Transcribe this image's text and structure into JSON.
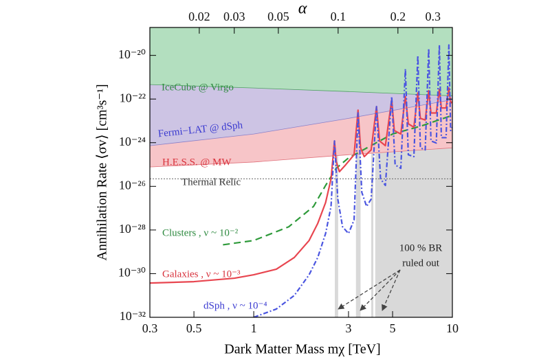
{
  "chart_data": {
    "type": "line",
    "xlabel": "Dark Matter Mass mχ [TeV]",
    "ylabel": "Annihilation Rate ⟨σv⟩ [cm³s⁻¹]",
    "x2label": "α",
    "log_x": true,
    "log_y": true,
    "xlim": [
      0.3,
      10
    ],
    "xticks": [
      0.3,
      0.5,
      1,
      3,
      5,
      10
    ],
    "x2lim": [
      0.01128,
      0.3759
    ],
    "x2ticks": [
      0.02,
      0.03,
      0.05,
      0.1,
      0.2,
      0.3
    ],
    "ylim": [
      1e-32,
      1.9e-19
    ],
    "yticks": [
      {
        "value": 1e-20,
        "label": "10⁻²⁰"
      },
      {
        "value": 1e-22,
        "label": "10⁻²²"
      },
      {
        "value": 1e-24,
        "label": "10⁻²⁴"
      },
      {
        "value": 1e-26,
        "label": "10⁻²⁶"
      },
      {
        "value": 1e-28,
        "label": "10⁻²⁸"
      },
      {
        "value": 1e-30,
        "label": "10⁻³⁰"
      },
      {
        "value": 1e-32,
        "label": "10⁻³²"
      }
    ],
    "regions": [
      {
        "name": "H.E.S.S. @ MW",
        "color": "#f7c5c8",
        "edge": "#e0707a",
        "x": [
          0.3,
          1,
          3,
          10
        ],
        "values": [
          7.7e-26,
          1.3e-25,
          2.8e-25,
          5.8e-25
        ]
      },
      {
        "name": "Fermi−LAT @ dSph",
        "color": "#cdc4e4",
        "edge": "#8a7fc8",
        "x": [
          0.3,
          1,
          3,
          10
        ],
        "values": [
          7.3e-25,
          2.5e-24,
          1.3e-23,
          9.3e-23
        ]
      },
      {
        "name": "IceCube @ Virgo",
        "color": "#b3dfbf",
        "edge": "#4f9e63",
        "x": [
          0.3,
          1,
          3,
          10
        ],
        "values": [
          4.6e-22,
          3.2e-22,
          2.2e-22,
          1.4e-22
        ]
      }
    ],
    "excluded_regions": [
      [
        2.56,
        2.66
      ],
      [
        3.27,
        3.45
      ],
      [
        3.9,
        4.0
      ],
      [
        4.09,
        10
      ]
    ],
    "excluded_label": [
      "100 % BR",
      "ruled out"
    ],
    "thermal_relic": {
      "label": "Thermal Relic",
      "value": 2.2e-26
    },
    "series": [
      {
        "name": "Clusters , ν ~ 10⁻²",
        "color": "#2e9a3a",
        "style": "dashed",
        "x": [
          0.7,
          1,
          1.5,
          2,
          2.3,
          2.6,
          3,
          4,
          5,
          7,
          10
        ],
        "values": [
          2.1e-29,
          3.3e-29,
          1.4e-28,
          1.2e-27,
          1.1e-26,
          6.7e-26,
          2e-25,
          8.4e-25,
          2.5e-24,
          5.9e-24,
          1.8e-23
        ]
      },
      {
        "name": "Galaxies , ν ~ 10⁻³",
        "color": "#e8454f",
        "style": "solid",
        "x": [
          0.3,
          0.5,
          0.8,
          1,
          1.3,
          1.6,
          1.9,
          2.1,
          2.3,
          2.45,
          2.55,
          2.6,
          2.7,
          2.9,
          3.2,
          3.35,
          3.45,
          3.6,
          3.9,
          4.15,
          4.3,
          4.6,
          4.95,
          5.1,
          5.5,
          5.8,
          6.0,
          6.4,
          6.7,
          6.9,
          7.3,
          7.6,
          7.8,
          8.3,
          8.6,
          8.8,
          9.3,
          9.6,
          9.8,
          10
        ],
        "values": [
          3.7e-31,
          4.3e-31,
          6.2e-31,
          8.9e-31,
          1.6e-30,
          5.5e-30,
          3.3e-29,
          2e-28,
          1.8e-27,
          2.2e-26,
          1.2e-24,
          1.4e-25,
          4.7e-26,
          9.6e-26,
          2.8e-25,
          3.1e-23,
          5.8e-25,
          2.3e-25,
          4.7e-25,
          4.5e-23,
          1.2e-24,
          7.3e-25,
          9.3e-23,
          3.6e-24,
          2.5e-24,
          1.3e-22,
          7.4e-24,
          5.1e-24,
          1.9e-22,
          1.3e-23,
          1.1e-23,
          2.4e-22,
          2.3e-23,
          2.3e-23,
          2.8e-22,
          3.9e-23,
          3.9e-23,
          3.2e-22,
          6.5e-23,
          7.5e-23
        ]
      },
      {
        "name": "dSph , ν ~ 10⁻⁴",
        "color": "#4a55e0",
        "style": "dashdot",
        "x": [
          1,
          1.3,
          1.6,
          1.9,
          2.1,
          2.3,
          2.45,
          2.55,
          2.65,
          2.8,
          3.0,
          3.2,
          3.35,
          3.5,
          3.7,
          3.9,
          4.15,
          4.35,
          4.6,
          4.95,
          5.15,
          5.5,
          5.8,
          6.0,
          6.4,
          6.7,
          6.9,
          7.3,
          7.6,
          7.8,
          8.3,
          8.6,
          8.8,
          9.3,
          9.6,
          9.8,
          10
        ],
        "values": [
          1e-32,
          2.4e-32,
          1e-31,
          8.9e-31,
          5.5e-30,
          6.9e-29,
          1.2e-27,
          1.2e-24,
          2.6e-27,
          1.4e-28,
          6.9e-29,
          2.9e-28,
          2.3e-23,
          5.3e-27,
          1.2e-27,
          2.6e-27,
          4.5e-23,
          2.2e-26,
          1.1e-26,
          1.3e-22,
          9.6e-26,
          6.7e-26,
          2.4e-21,
          2.8e-25,
          2.3e-25,
          1e-20,
          5.8e-25,
          4.7e-25,
          2.1e-20,
          1.2e-24,
          9.7e-25,
          3e-20,
          1.7e-24,
          1.7e-24,
          3e-20,
          3.6e-24,
          5.1e-24
        ]
      }
    ]
  }
}
